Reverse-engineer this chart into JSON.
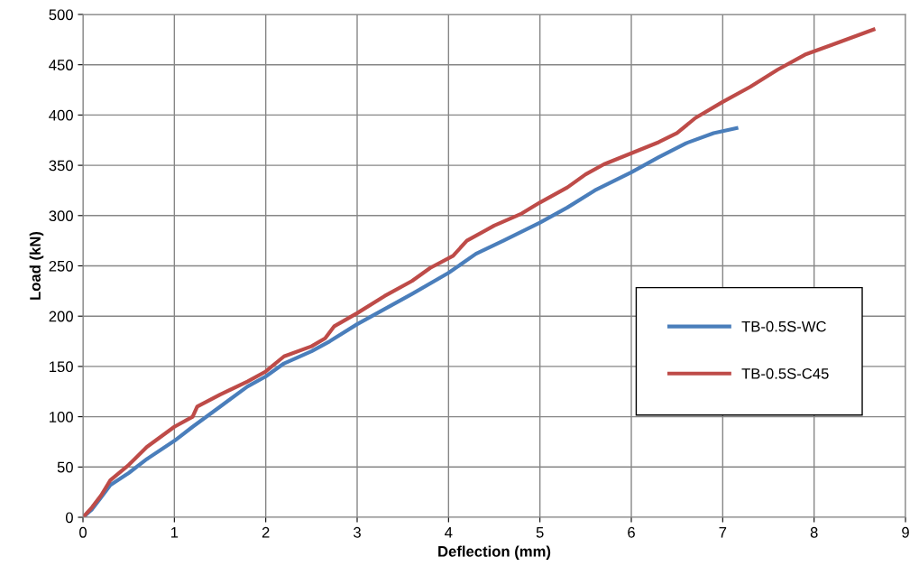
{
  "chart_data": {
    "type": "line",
    "xlabel": "Deflection (mm)",
    "ylabel": "Load (kN)",
    "xlim": [
      0,
      9
    ],
    "xticks": [
      0,
      1,
      2,
      3,
      4,
      5,
      6,
      7,
      8,
      9
    ],
    "ylim": [
      0,
      500
    ],
    "yticks": [
      0,
      50,
      100,
      150,
      200,
      250,
      300,
      350,
      400,
      450,
      500
    ],
    "grid": true,
    "legend": "center right",
    "marker": "none",
    "line_style": "solid",
    "series": [
      {
        "name": "TB-0.5S-WC",
        "color": "#4a7ebb",
        "x": [
          0,
          0.1,
          0.2,
          0.3,
          0.5,
          0.7,
          1.0,
          1.2,
          1.5,
          1.8,
          2.0,
          2.2,
          2.5,
          2.7,
          3.0,
          3.3,
          3.6,
          4.0,
          4.3,
          4.6,
          5.0,
          5.3,
          5.6,
          6.0,
          6.3,
          6.6,
          6.9,
          7.15
        ],
        "values": [
          0,
          8,
          20,
          32,
          44,
          58,
          76,
          90,
          110,
          130,
          140,
          153,
          165,
          175,
          192,
          207,
          222,
          243,
          262,
          275,
          293,
          308,
          325,
          343,
          358,
          372,
          382,
          387
        ]
      },
      {
        "name": "TB-0.5S-C45",
        "color": "#be4b48",
        "x": [
          0,
          0.1,
          0.2,
          0.3,
          0.5,
          0.7,
          1.0,
          1.2,
          1.25,
          1.5,
          1.8,
          2.0,
          2.2,
          2.5,
          2.65,
          2.75,
          3.0,
          3.3,
          3.6,
          3.8,
          4.05,
          4.2,
          4.5,
          4.8,
          5.0,
          5.3,
          5.5,
          5.7,
          6.0,
          6.3,
          6.5,
          6.7,
          7.0,
          7.3,
          7.6,
          7.9,
          8.2,
          8.65
        ],
        "values": [
          0,
          10,
          22,
          37,
          52,
          70,
          90,
          100,
          110,
          122,
          135,
          145,
          160,
          170,
          178,
          190,
          203,
          220,
          235,
          248,
          260,
          275,
          290,
          302,
          313,
          328,
          341,
          351,
          362,
          373,
          382,
          397,
          413,
          428,
          445,
          460,
          470,
          485
        ]
      }
    ]
  }
}
